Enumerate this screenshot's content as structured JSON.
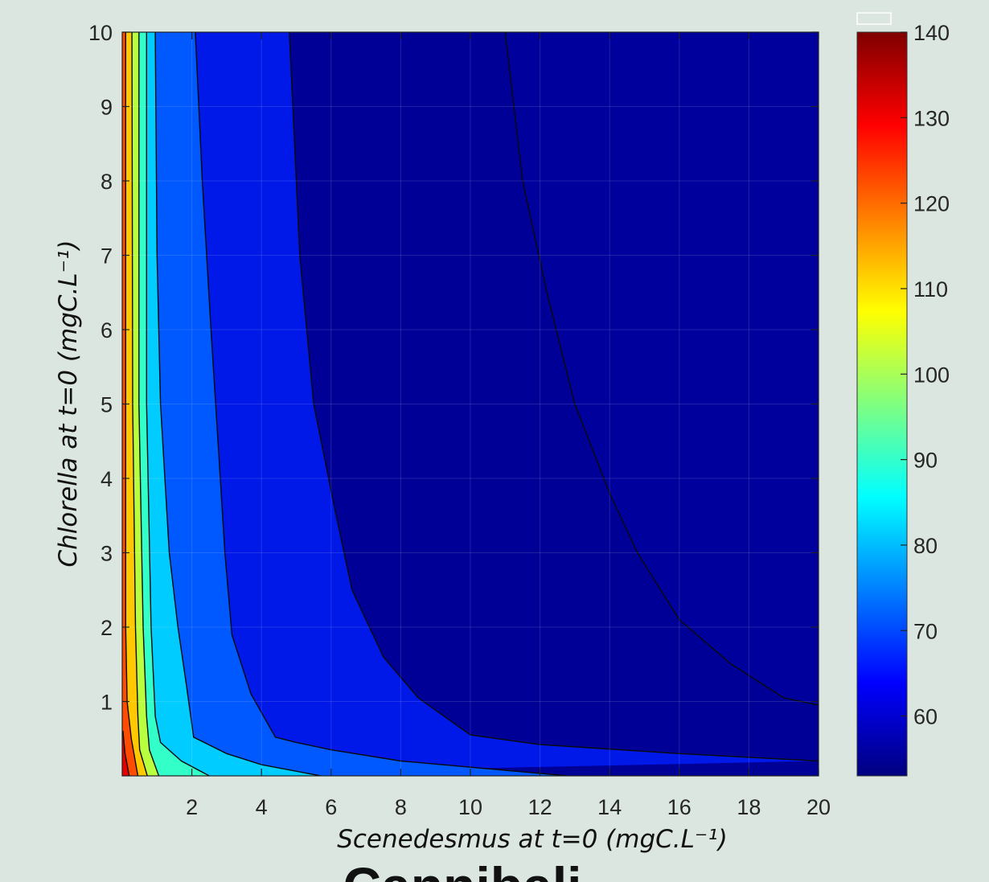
{
  "chart_data": {
    "type": "contour",
    "title": "",
    "caption": "Cannibali",
    "xlabel": "Scenedesmus at t=0 (mgC.L⁻¹)",
    "ylabel": "Chlorella at t=0 (mgC.L⁻¹)",
    "xlim": [
      0,
      20
    ],
    "ylim": [
      0,
      10
    ],
    "x_ticks": [
      2,
      4,
      6,
      8,
      10,
      12,
      14,
      16,
      18,
      20
    ],
    "x_tick_labels": [
      "2",
      "4",
      "6",
      "8",
      "10",
      "12",
      "14",
      "16",
      "18",
      "20"
    ],
    "y_ticks": [
      1,
      2,
      3,
      4,
      5,
      6,
      7,
      8,
      9,
      10
    ],
    "y_tick_labels": [
      "1",
      "2",
      "3",
      "4",
      "5",
      "6",
      "7",
      "8",
      "9",
      "10"
    ],
    "colorbar": {
      "colormap": "jet",
      "range": [
        53,
        140
      ],
      "ticks": [
        60,
        70,
        80,
        90,
        100,
        110,
        120,
        130,
        140
      ],
      "tick_labels": [
        "60",
        "70",
        "80",
        "90",
        "100",
        "110",
        "120",
        "130",
        "140"
      ]
    },
    "background_level": 55,
    "regions": [
      {
        "level": 65,
        "color": "#0019e9",
        "boundary": [
          [
            20,
            0.2
          ],
          [
            16,
            0.3
          ],
          [
            12,
            0.42
          ],
          [
            10,
            0.55
          ],
          [
            8.5,
            1.05
          ],
          [
            7.5,
            1.6
          ],
          [
            6.6,
            2.5
          ],
          [
            6.1,
            3.6
          ],
          [
            5.5,
            5
          ],
          [
            5.1,
            7
          ],
          [
            4.9,
            9
          ],
          [
            4.8,
            10
          ]
        ]
      },
      {
        "level": 70,
        "color": "#0058ff",
        "boundary": [
          [
            12.8,
            0
          ],
          [
            8,
            0.2
          ],
          [
            6,
            0.35
          ],
          [
            5,
            0.45
          ],
          [
            4.4,
            0.52
          ],
          [
            3.7,
            1.1
          ],
          [
            3.15,
            1.9
          ],
          [
            2.95,
            3
          ],
          [
            2.75,
            4.5
          ],
          [
            2.55,
            6
          ],
          [
            2.3,
            8
          ],
          [
            2.1,
            10
          ]
        ]
      },
      {
        "level": 78,
        "color": "#00ccff",
        "boundary": [
          [
            5.7,
            0
          ],
          [
            4,
            0.15
          ],
          [
            3,
            0.3
          ],
          [
            2.05,
            0.52
          ],
          [
            1.85,
            1.2
          ],
          [
            1.6,
            2
          ],
          [
            1.35,
            3
          ],
          [
            1.1,
            5
          ],
          [
            1.0,
            7
          ],
          [
            0.95,
            10
          ]
        ]
      },
      {
        "level": 88,
        "color": "#33ffc8",
        "boundary": [
          [
            2.5,
            0
          ],
          [
            1.7,
            0.2
          ],
          [
            1.1,
            0.45
          ],
          [
            0.95,
            0.8
          ],
          [
            0.83,
            2
          ],
          [
            0.7,
            5
          ],
          [
            0.7,
            10
          ]
        ]
      },
      {
        "level": 98,
        "color": "#b8ff40",
        "boundary": [
          [
            1.05,
            0
          ],
          [
            0.78,
            0.35
          ],
          [
            0.7,
            0.8
          ],
          [
            0.6,
            2
          ],
          [
            0.48,
            5
          ],
          [
            0.48,
            10
          ]
        ]
      },
      {
        "level": 110,
        "color": "#ffc800",
        "boundary": [
          [
            0.72,
            0
          ],
          [
            0.5,
            0.35
          ],
          [
            0.45,
            0.8
          ],
          [
            0.38,
            2
          ],
          [
            0.3,
            5
          ],
          [
            0.28,
            10
          ]
        ]
      },
      {
        "level": 122,
        "color": "#ff4c00",
        "boundary": [
          [
            0.45,
            0
          ],
          [
            0.26,
            0.5
          ],
          [
            0.14,
            1
          ],
          [
            0.1,
            2
          ],
          [
            0.1,
            5
          ],
          [
            0.1,
            10
          ]
        ]
      },
      {
        "level": 132,
        "color": "#e80000",
        "boundary": [
          [
            0.2,
            0
          ],
          [
            0.08,
            0.3
          ],
          [
            0.02,
            0.6
          ],
          [
            0,
            0.6
          ]
        ]
      }
    ],
    "top_line": {
      "level": 60,
      "color": "#00009c",
      "points": [
        [
          11,
          10
        ],
        [
          11.5,
          8
        ],
        [
          12.2,
          6.5
        ],
        [
          13,
          5
        ],
        [
          14,
          3.8
        ],
        [
          14.8,
          3
        ],
        [
          16,
          2.1
        ],
        [
          17.5,
          1.5
        ],
        [
          19,
          1.05
        ],
        [
          20,
          0.95
        ]
      ]
    },
    "grid": true
  }
}
